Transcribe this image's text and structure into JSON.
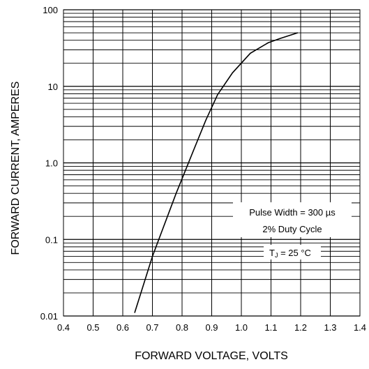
{
  "chart_data": {
    "type": "line",
    "title": "",
    "xlabel": "FORWARD VOLTAGE, VOLTS",
    "ylabel": "FORWARD CURRENT, AMPERES",
    "xlim": [
      0.4,
      1.4
    ],
    "ylim": [
      0.01,
      100
    ],
    "yscale": "log",
    "grid": true,
    "legend": "none",
    "x_ticks": [
      "0.4",
      "0.5",
      "0.6",
      "0.7",
      "0.8",
      "0.9",
      "1.0",
      "1.1",
      "1.2",
      "1.3",
      "1.4"
    ],
    "y_ticks": [
      "0.01",
      "0.1",
      "1.0",
      "10",
      "100"
    ],
    "series": [
      {
        "x": [
          0.64,
          0.7,
          0.78,
          0.84,
          0.88,
          0.92,
          0.97,
          1.03,
          1.09,
          1.13,
          1.19
        ],
        "y": [
          0.011,
          0.06,
          0.4,
          1.5,
          3.6,
          7.8,
          15,
          27,
          37,
          42,
          50
        ]
      }
    ],
    "annotations": {
      "pulse_width": "Pulse Width = 300  µs",
      "duty_cycle": "2% Duty Cycle",
      "temp_prefix": "T",
      "temp_subscript": "J",
      "temp_suffix": " = 25 °C"
    },
    "colors": {
      "line": "#000000",
      "grid": "#000000",
      "background": "#ffffff"
    }
  }
}
